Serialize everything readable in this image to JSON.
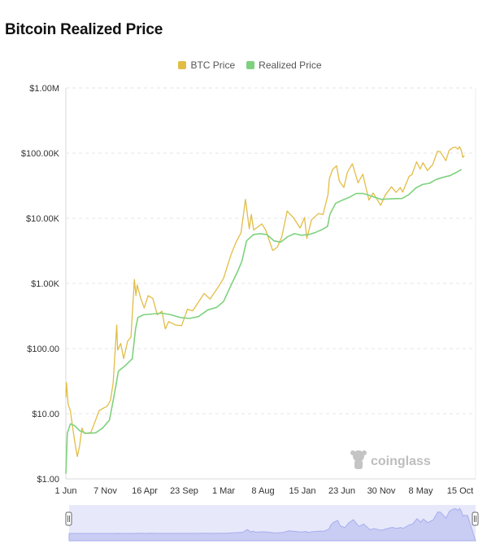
{
  "title": "Bitcoin Realized Price",
  "legend": [
    {
      "label": "BTC Price",
      "color": "#e2bd45"
    },
    {
      "label": "Realized Price",
      "color": "#7fd17f"
    }
  ],
  "watermark": "coinglass",
  "chart_data": {
    "type": "line",
    "title": "Bitcoin Realized Price",
    "y_scale": "log",
    "ylim": [
      1,
      1000000
    ],
    "y_ticks": [
      {
        "value": 1,
        "label": "$1.00"
      },
      {
        "value": 10,
        "label": "$10.00"
      },
      {
        "value": 100,
        "label": "$100.00"
      },
      {
        "value": 1000,
        "label": "$1.00K"
      },
      {
        "value": 10000,
        "label": "$10.00K"
      },
      {
        "value": 100000,
        "label": "$100.00K"
      },
      {
        "value": 1000000,
        "label": "$1.00M"
      }
    ],
    "x_range": [
      "2011-06-01",
      "2025-06-01"
    ],
    "x_ticks": [
      {
        "date": "2011-06-01",
        "label": "1 Jun"
      },
      {
        "date": "2012-11-07",
        "label": "7 Nov"
      },
      {
        "date": "2014-04-16",
        "label": "16 Apr"
      },
      {
        "date": "2015-09-23",
        "label": "23 Sep"
      },
      {
        "date": "2017-03-01",
        "label": "1 Mar"
      },
      {
        "date": "2018-08-08",
        "label": "8 Aug"
      },
      {
        "date": "2020-01-15",
        "label": "15 Jan"
      },
      {
        "date": "2021-06-23",
        "label": "23 Jun"
      },
      {
        "date": "2022-11-30",
        "label": "30 Nov"
      },
      {
        "date": "2024-05-08",
        "label": "8 May"
      },
      {
        "date": "2025-10-15",
        "label": "15 Oct"
      }
    ],
    "grid": true,
    "legend_position": "top-center",
    "series": [
      {
        "name": "BTC Price",
        "color": "#e2bd45",
        "points": [
          [
            "2011-06-01",
            18
          ],
          [
            "2011-06-10",
            30
          ],
          [
            "2011-07-01",
            14
          ],
          [
            "2011-08-01",
            11
          ],
          [
            "2011-09-01",
            6
          ],
          [
            "2011-10-01",
            3.5
          ],
          [
            "2011-11-01",
            2.2
          ],
          [
            "2011-12-01",
            3.2
          ],
          [
            "2012-01-01",
            6
          ],
          [
            "2012-02-01",
            5
          ],
          [
            "2012-03-01",
            5
          ],
          [
            "2012-05-01",
            5.2
          ],
          [
            "2012-07-01",
            8
          ],
          [
            "2012-08-15",
            11
          ],
          [
            "2012-10-01",
            12
          ],
          [
            "2012-12-01",
            13
          ],
          [
            "2013-01-15",
            16
          ],
          [
            "2013-02-20",
            30
          ],
          [
            "2013-04-09",
            230
          ],
          [
            "2013-04-20",
            95
          ],
          [
            "2013-06-01",
            120
          ],
          [
            "2013-07-10",
            70
          ],
          [
            "2013-09-01",
            130
          ],
          [
            "2013-10-15",
            150
          ],
          [
            "2013-11-30",
            1150
          ],
          [
            "2013-12-20",
            650
          ],
          [
            "2014-01-05",
            950
          ],
          [
            "2014-02-20",
            600
          ],
          [
            "2014-04-10",
            420
          ],
          [
            "2014-06-01",
            650
          ],
          [
            "2014-08-01",
            590
          ],
          [
            "2014-10-01",
            330
          ],
          [
            "2014-12-01",
            375
          ],
          [
            "2015-01-15",
            200
          ],
          [
            "2015-03-01",
            260
          ],
          [
            "2015-06-01",
            230
          ],
          [
            "2015-08-20",
            225
          ],
          [
            "2015-11-05",
            400
          ],
          [
            "2016-01-15",
            380
          ],
          [
            "2016-06-15",
            700
          ],
          [
            "2016-09-01",
            575
          ],
          [
            "2016-12-25",
            900
          ],
          [
            "2017-03-01",
            1200
          ],
          [
            "2017-06-10",
            2800
          ],
          [
            "2017-08-15",
            4300
          ],
          [
            "2017-10-20",
            6000
          ],
          [
            "2017-12-17",
            19500
          ],
          [
            "2018-02-06",
            6900
          ],
          [
            "2018-03-05",
            11400
          ],
          [
            "2018-04-06",
            6600
          ],
          [
            "2018-07-25",
            8200
          ],
          [
            "2018-09-15",
            6500
          ],
          [
            "2018-12-15",
            3200
          ],
          [
            "2019-02-15",
            3600
          ],
          [
            "2019-04-15",
            5200
          ],
          [
            "2019-06-26",
            12900
          ],
          [
            "2019-09-15",
            10300
          ],
          [
            "2019-12-15",
            7100
          ],
          [
            "2020-02-12",
            10300
          ],
          [
            "2020-03-13",
            4900
          ],
          [
            "2020-05-15",
            9500
          ],
          [
            "2020-08-15",
            11800
          ],
          [
            "2020-10-15",
            11400
          ],
          [
            "2020-12-20",
            23000
          ],
          [
            "2021-01-08",
            41000
          ],
          [
            "2021-02-20",
            56000
          ],
          [
            "2021-04-14",
            64000
          ],
          [
            "2021-05-20",
            37000
          ],
          [
            "2021-07-20",
            29800
          ],
          [
            "2021-09-05",
            51000
          ],
          [
            "2021-11-10",
            68500
          ],
          [
            "2022-01-24",
            35000
          ],
          [
            "2022-03-28",
            47500
          ],
          [
            "2022-06-18",
            19000
          ],
          [
            "2022-08-14",
            24500
          ],
          [
            "2022-11-21",
            15800
          ],
          [
            "2023-01-20",
            22500
          ],
          [
            "2023-04-14",
            30500
          ],
          [
            "2023-06-15",
            25000
          ],
          [
            "2023-08-10",
            29500
          ],
          [
            "2023-09-11",
            25200
          ],
          [
            "2023-12-05",
            44000
          ],
          [
            "2024-01-11",
            46500
          ],
          [
            "2024-03-14",
            73500
          ],
          [
            "2024-05-01",
            57000
          ],
          [
            "2024-06-07",
            71500
          ],
          [
            "2024-08-05",
            54000
          ],
          [
            "2024-10-15",
            67000
          ],
          [
            "2024-12-17",
            107000
          ],
          [
            "2025-01-21",
            106000
          ],
          [
            "2025-04-08",
            76500
          ],
          [
            "2025-05-22",
            111000
          ],
          [
            "2025-07-14",
            122000
          ],
          [
            "2025-08-14",
            123000
          ],
          [
            "2025-09-15",
            115000
          ],
          [
            "2025-10-06",
            125000
          ],
          [
            "2025-10-28",
            112000
          ],
          [
            "2025-11-20",
            86000
          ],
          [
            "2025-12-10",
            92000
          ],
          [
            "2026-01-01",
            88000
          ],
          [
            "2026-01-20",
            90000
          ]
        ]
      },
      {
        "name": "Realized Price",
        "color": "#7fd17f",
        "points": [
          [
            "2011-06-01",
            1.2
          ],
          [
            "2011-06-20",
            5
          ],
          [
            "2011-08-01",
            7
          ],
          [
            "2011-10-01",
            6.5
          ],
          [
            "2011-12-01",
            5.5
          ],
          [
            "2012-03-01",
            5
          ],
          [
            "2012-07-01",
            5.1
          ],
          [
            "2012-10-01",
            6
          ],
          [
            "2013-01-01",
            8
          ],
          [
            "2013-03-01",
            18
          ],
          [
            "2013-05-01",
            45
          ],
          [
            "2013-08-01",
            55
          ],
          [
            "2013-11-01",
            70
          ],
          [
            "2013-12-15",
            200
          ],
          [
            "2014-01-15",
            300
          ],
          [
            "2014-04-01",
            330
          ],
          [
            "2014-08-01",
            340
          ],
          [
            "2014-12-01",
            350
          ],
          [
            "2015-04-01",
            330
          ],
          [
            "2015-08-01",
            300
          ],
          [
            "2015-12-01",
            290
          ],
          [
            "2016-04-01",
            310
          ],
          [
            "2016-08-01",
            390
          ],
          [
            "2016-12-01",
            430
          ],
          [
            "2017-03-01",
            530
          ],
          [
            "2017-06-01",
            900
          ],
          [
            "2017-09-01",
            1500
          ],
          [
            "2017-11-01",
            2200
          ],
          [
            "2018-01-01",
            4500
          ],
          [
            "2018-04-01",
            5600
          ],
          [
            "2018-07-01",
            5800
          ],
          [
            "2018-10-01",
            5600
          ],
          [
            "2019-01-01",
            4500
          ],
          [
            "2019-04-01",
            4300
          ],
          [
            "2019-07-01",
            5200
          ],
          [
            "2019-10-01",
            5800
          ],
          [
            "2020-01-01",
            5500
          ],
          [
            "2020-04-01",
            5600
          ],
          [
            "2020-07-01",
            6000
          ],
          [
            "2020-10-01",
            6700
          ],
          [
            "2020-12-15",
            7500
          ],
          [
            "2021-01-15",
            11500
          ],
          [
            "2021-04-01",
            17000
          ],
          [
            "2021-07-01",
            19000
          ],
          [
            "2021-10-01",
            21000
          ],
          [
            "2022-01-01",
            24000
          ],
          [
            "2022-04-01",
            24000
          ],
          [
            "2022-06-01",
            23000
          ],
          [
            "2022-09-01",
            21000
          ],
          [
            "2022-12-01",
            19500
          ],
          [
            "2023-03-01",
            19800
          ],
          [
            "2023-06-01",
            20000
          ],
          [
            "2023-09-01",
            20100
          ],
          [
            "2023-12-01",
            23000
          ],
          [
            "2024-03-01",
            29000
          ],
          [
            "2024-06-01",
            33000
          ],
          [
            "2024-09-01",
            34500
          ],
          [
            "2024-12-01",
            39500
          ],
          [
            "2025-03-01",
            42500
          ],
          [
            "2025-06-01",
            45000
          ],
          [
            "2025-09-01",
            51000
          ],
          [
            "2025-11-01",
            56000
          ],
          [
            "2026-01-20",
            54000
          ]
        ]
      }
    ]
  }
}
